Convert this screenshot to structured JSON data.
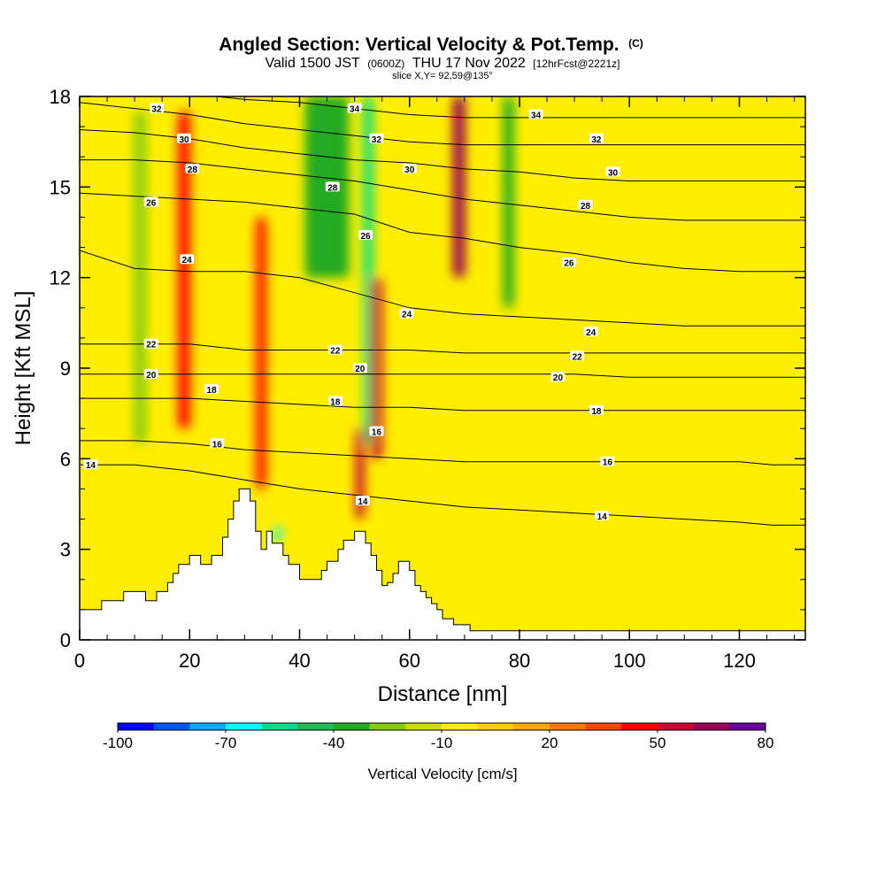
{
  "header": {
    "title": "Angled Section: Vertical Velocity & Pot.Temp.",
    "title_units": "(C)",
    "subtitle_pre": "Valid 1500 JST",
    "subtitle_utc": "(0600Z)",
    "subtitle_main": "THU 17 Nov 2022",
    "subtitle_fcst": "[12hrFcst@2221z]",
    "slice": "slice X,Y= 92,59@135°"
  },
  "chart_data": {
    "type": "heatmap",
    "title": "Angled Section: Vertical Velocity & Pot.Temp. (C)",
    "xlabel": "Distance [nm]",
    "ylabel": "Height [Kft MSL]",
    "xlim": [
      0,
      132
    ],
    "ylim": [
      0,
      18
    ],
    "x_ticks": [
      0,
      20,
      40,
      60,
      80,
      100,
      120
    ],
    "y_ticks": [
      0,
      3,
      6,
      9,
      12,
      15,
      18
    ],
    "x_tick_labels": [
      "0",
      "20",
      "40",
      "60",
      "80",
      "100",
      "120"
    ],
    "y_tick_labels": [
      "0",
      "3",
      "6",
      "9",
      "12",
      "15",
      "18"
    ],
    "field": "Vertical Velocity",
    "field_units": "cm/s",
    "background_value_cm_s": 0,
    "colorbar": {
      "title": "Vertical Velocity [cm/s]",
      "min": -100,
      "max": 80,
      "step": 10,
      "labels": [
        "-100",
        "-70",
        "-40",
        "-10",
        "20",
        "50",
        "80"
      ],
      "label_values": [
        -100,
        -70,
        -40,
        -10,
        20,
        50,
        80
      ],
      "colors": [
        "#0000ff",
        "#0055ff",
        "#00aaff",
        "#00ffff",
        "#00dd88",
        "#22bb55",
        "#22aa22",
        "#88cc11",
        "#ccdd00",
        "#ffee00",
        "#ffcc00",
        "#ffaa00",
        "#ff7700",
        "#ff4400",
        "#ff0000",
        "#cc0033",
        "#990055",
        "#660099"
      ]
    },
    "velocity_bands": [
      {
        "x": 11,
        "y_range": [
          6.5,
          17.5
        ],
        "width": 2.2,
        "value": -30
      },
      {
        "x": 19,
        "y_range": [
          7,
          17.5
        ],
        "width": 2.2,
        "value": 45
      },
      {
        "x": 33,
        "y_range": [
          5,
          14
        ],
        "width": 1.8,
        "value": 45
      },
      {
        "x": 45,
        "y_range": [
          12,
          18
        ],
        "width": 8,
        "value": -40
      },
      {
        "x": 52.5,
        "y_range": [
          6.5,
          18
        ],
        "width": 1.8,
        "value": -60
      },
      {
        "x": 54,
        "y_range": [
          6,
          12
        ],
        "width": 2,
        "value": 50
      },
      {
        "x": 51,
        "y_range": [
          4,
          7
        ],
        "width": 1.6,
        "value": 55
      },
      {
        "x": 69,
        "y_range": [
          12,
          18
        ],
        "width": 2.2,
        "value": 60
      },
      {
        "x": 78,
        "y_range": [
          11,
          18
        ],
        "width": 2,
        "value": -35
      },
      {
        "x": 36,
        "y_range": [
          3.2,
          3.8
        ],
        "width": 1.2,
        "value": -70
      }
    ],
    "theta_contours": [
      {
        "value": 14,
        "heights_kft": [
          5.8,
          5.8,
          5.6,
          5.3,
          5.0,
          4.8,
          4.6,
          4.4,
          4.3,
          4.2,
          4.1,
          4.0,
          3.9,
          3.8,
          3.8
        ]
      },
      {
        "value": 16,
        "heights_kft": [
          6.6,
          6.6,
          6.5,
          6.3,
          6.2,
          6.1,
          6.0,
          5.9,
          5.9,
          5.9,
          5.9,
          5.9,
          5.9,
          5.8,
          5.8
        ]
      },
      {
        "value": 18,
        "heights_kft": [
          8.0,
          8.0,
          8.0,
          7.9,
          7.8,
          7.7,
          7.7,
          7.6,
          7.6,
          7.6,
          7.6,
          7.6,
          7.6,
          7.6,
          7.6
        ]
      },
      {
        "value": 20,
        "heights_kft": [
          8.8,
          8.8,
          8.8,
          8.8,
          8.8,
          8.8,
          8.8,
          8.8,
          8.8,
          8.8,
          8.7,
          8.7,
          8.7,
          8.7,
          8.7
        ]
      },
      {
        "value": 22,
        "heights_kft": [
          9.8,
          9.8,
          9.8,
          9.6,
          9.6,
          9.6,
          9.6,
          9.5,
          9.5,
          9.5,
          9.5,
          9.5,
          9.5,
          9.5,
          9.5
        ]
      },
      {
        "value": 24,
        "heights_kft": [
          12.9,
          12.3,
          12.2,
          12.2,
          12.0,
          11.5,
          11.0,
          10.8,
          10.7,
          10.6,
          10.5,
          10.4,
          10.4,
          10.4,
          10.4
        ]
      },
      {
        "value": 26,
        "heights_kft": [
          14.8,
          14.7,
          14.6,
          14.5,
          14.3,
          14.1,
          13.5,
          13.3,
          13.0,
          12.8,
          12.5,
          12.3,
          12.2,
          12.2,
          12.2
        ]
      },
      {
        "value": 28,
        "heights_kft": [
          15.9,
          15.9,
          15.8,
          15.6,
          15.4,
          15.2,
          14.9,
          14.6,
          14.4,
          14.2,
          14.0,
          13.9,
          13.9,
          13.9,
          13.9
        ]
      },
      {
        "value": 30,
        "heights_kft": [
          16.9,
          16.8,
          16.6,
          16.3,
          16.1,
          15.9,
          15.8,
          15.6,
          15.5,
          15.3,
          15.2,
          15.2,
          15.2,
          15.2,
          15.2
        ]
      },
      {
        "value": 32,
        "heights_kft": [
          17.8,
          17.6,
          17.4,
          17.1,
          16.9,
          16.7,
          16.5,
          16.4,
          16.4,
          16.4,
          16.4,
          16.4,
          16.4,
          16.4,
          16.4
        ]
      },
      {
        "value": 34,
        "heights_kft": [
          18.3,
          18.3,
          18.1,
          17.9,
          17.8,
          17.6,
          17.4,
          17.3,
          17.3,
          17.3,
          17.3,
          17.3,
          17.3,
          17.3,
          17.3
        ]
      }
    ],
    "contour_x_nm": [
      0,
      10,
      20,
      30,
      40,
      50,
      60,
      70,
      80,
      90,
      100,
      110,
      120,
      126,
      132
    ],
    "contour_labels": [
      {
        "text": "34",
        "x": 50,
        "y": 17.6
      },
      {
        "text": "34",
        "x": 83,
        "y": 17.4
      },
      {
        "text": "32",
        "x": 14,
        "y": 17.6
      },
      {
        "text": "32",
        "x": 54,
        "y": 16.6
      },
      {
        "text": "32",
        "x": 94,
        "y": 16.6
      },
      {
        "text": "30",
        "x": 19,
        "y": 16.6
      },
      {
        "text": "30",
        "x": 60,
        "y": 15.6
      },
      {
        "text": "30",
        "x": 97,
        "y": 15.5
      },
      {
        "text": "28",
        "x": 20.5,
        "y": 15.6
      },
      {
        "text": "28",
        "x": 46,
        "y": 15.0
      },
      {
        "text": "28",
        "x": 92,
        "y": 14.4
      },
      {
        "text": "26",
        "x": 13,
        "y": 14.5
      },
      {
        "text": "26",
        "x": 52,
        "y": 13.4
      },
      {
        "text": "26",
        "x": 89,
        "y": 12.5
      },
      {
        "text": "24",
        "x": 19.5,
        "y": 12.6
      },
      {
        "text": "24",
        "x": 59.5,
        "y": 10.8
      },
      {
        "text": "24",
        "x": 93,
        "y": 10.2
      },
      {
        "text": "22",
        "x": 13,
        "y": 9.8
      },
      {
        "text": "22",
        "x": 46.5,
        "y": 9.6
      },
      {
        "text": "22",
        "x": 90.5,
        "y": 9.4
      },
      {
        "text": "20",
        "x": 13,
        "y": 8.8
      },
      {
        "text": "20",
        "x": 51,
        "y": 9.0
      },
      {
        "text": "20",
        "x": 87,
        "y": 8.7
      },
      {
        "text": "18",
        "x": 24,
        "y": 8.3
      },
      {
        "text": "18",
        "x": 46.5,
        "y": 7.9
      },
      {
        "text": "18",
        "x": 94,
        "y": 7.6
      },
      {
        "text": "16",
        "x": 25,
        "y": 6.5
      },
      {
        "text": "16",
        "x": 54,
        "y": 6.9
      },
      {
        "text": "16",
        "x": 96,
        "y": 5.9
      },
      {
        "text": "14",
        "x": 2,
        "y": 5.8
      },
      {
        "text": "14",
        "x": 51.5,
        "y": 4.6
      },
      {
        "text": "14",
        "x": 95,
        "y": 4.1
      }
    ],
    "terrain_profile": [
      [
        0,
        1.0
      ],
      [
        4,
        1.0
      ],
      [
        4,
        1.3
      ],
      [
        8,
        1.3
      ],
      [
        8,
        1.6
      ],
      [
        12,
        1.6
      ],
      [
        12,
        1.3
      ],
      [
        14,
        1.3
      ],
      [
        14,
        1.6
      ],
      [
        16,
        1.6
      ],
      [
        16,
        1.9
      ],
      [
        17,
        1.9
      ],
      [
        17,
        2.2
      ],
      [
        18,
        2.2
      ],
      [
        18,
        2.5
      ],
      [
        20,
        2.5
      ],
      [
        20,
        2.8
      ],
      [
        22,
        2.8
      ],
      [
        22,
        2.5
      ],
      [
        24,
        2.5
      ],
      [
        24,
        2.8
      ],
      [
        26,
        2.8
      ],
      [
        26,
        3.4
      ],
      [
        27,
        3.4
      ],
      [
        27,
        4.0
      ],
      [
        28,
        4.0
      ],
      [
        28,
        4.6
      ],
      [
        29,
        4.6
      ],
      [
        29,
        5.0
      ],
      [
        31,
        5.0
      ],
      [
        31,
        4.6
      ],
      [
        32,
        4.6
      ],
      [
        32,
        3.6
      ],
      [
        33,
        3.6
      ],
      [
        33,
        3.0
      ],
      [
        34,
        3.0
      ],
      [
        34,
        3.6
      ],
      [
        35,
        3.6
      ],
      [
        35,
        3.2
      ],
      [
        37,
        3.2
      ],
      [
        37,
        2.8
      ],
      [
        38,
        2.8
      ],
      [
        38,
        2.5
      ],
      [
        40,
        2.5
      ],
      [
        40,
        2.0
      ],
      [
        44,
        2.0
      ],
      [
        44,
        2.3
      ],
      [
        45,
        2.3
      ],
      [
        45,
        2.6
      ],
      [
        47,
        2.6
      ],
      [
        47,
        3.0
      ],
      [
        48,
        3.0
      ],
      [
        48,
        3.3
      ],
      [
        50,
        3.3
      ],
      [
        50,
        3.6
      ],
      [
        52,
        3.6
      ],
      [
        52,
        3.2
      ],
      [
        53,
        3.2
      ],
      [
        53,
        2.8
      ],
      [
        54,
        2.8
      ],
      [
        54,
        2.3
      ],
      [
        55,
        2.3
      ],
      [
        55,
        1.8
      ],
      [
        56,
        1.8
      ],
      [
        56,
        1.9
      ],
      [
        57,
        1.9
      ],
      [
        57,
        2.2
      ],
      [
        58,
        2.2
      ],
      [
        58,
        2.6
      ],
      [
        60,
        2.6
      ],
      [
        60,
        2.3
      ],
      [
        61,
        2.3
      ],
      [
        61,
        1.8
      ],
      [
        62,
        1.8
      ],
      [
        62,
        1.6
      ],
      [
        63,
        1.6
      ],
      [
        63,
        1.4
      ],
      [
        64,
        1.4
      ],
      [
        64,
        1.2
      ],
      [
        65,
        1.2
      ],
      [
        65,
        1.0
      ],
      [
        66,
        1.0
      ],
      [
        66,
        0.7
      ],
      [
        68,
        0.7
      ],
      [
        68,
        0.5
      ],
      [
        71,
        0.5
      ],
      [
        71,
        0.3
      ],
      [
        132,
        0.3
      ]
    ]
  }
}
